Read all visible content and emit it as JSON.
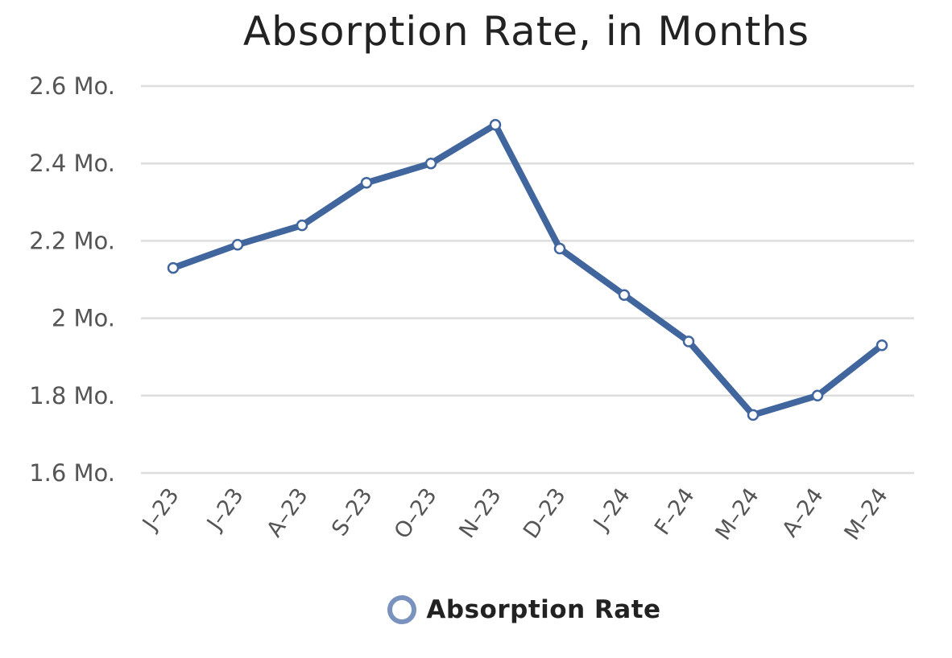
{
  "chart_data": {
    "type": "line",
    "title": "Absorption Rate, in Months",
    "categories": [
      "J–23",
      "J–23",
      "A–23",
      "S–23",
      "O–23",
      "N–23",
      "D–23",
      "J–24",
      "F–24",
      "M–24",
      "A–24",
      "M–24"
    ],
    "series": [
      {
        "name": "Absorption Rate",
        "values": [
          2.13,
          2.19,
          2.24,
          2.35,
          2.4,
          2.5,
          2.18,
          2.06,
          1.94,
          1.75,
          1.8,
          1.93
        ]
      }
    ],
    "yticks": [
      "1.6 Mo.",
      "1.8 Mo.",
      "2 Mo.",
      "2.2 Mo.",
      "2.4 Mo.",
      "2.6 Mo."
    ],
    "ylim": [
      1.6,
      2.6
    ],
    "grid": true,
    "legend_position": "bottom",
    "colors": {
      "line": "#41669e",
      "marker_fill": "#ffffff",
      "legend_marker": "#7a93be",
      "grid": "#dddddd"
    }
  }
}
